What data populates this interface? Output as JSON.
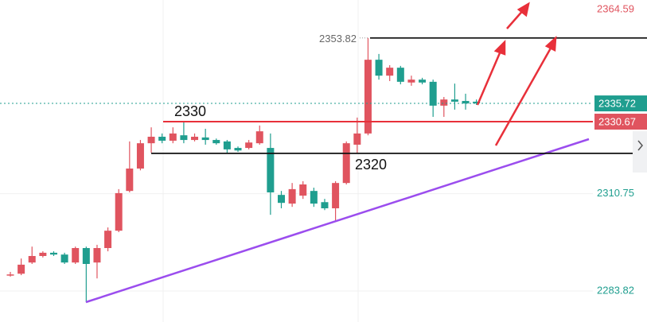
{
  "chart_data": {
    "type": "candlestick",
    "categories": [
      null,
      null,
      null,
      null,
      null,
      null,
      null,
      null,
      null,
      null,
      null,
      null,
      null,
      null,
      null,
      null,
      null,
      null,
      null,
      null,
      null,
      null,
      null,
      null,
      null,
      null,
      null,
      null,
      null,
      null,
      null,
      null,
      null,
      null,
      null,
      null,
      null,
      null,
      null,
      null,
      null,
      null,
      null,
      null
    ],
    "open": [
      2288.2,
      2288.6,
      2291.7,
      2293.5,
      2294.4,
      2293.9,
      2291.7,
      2295.7,
      2291.7,
      2295.7,
      2300.5,
      2311.5,
      2317.7,
      2324.7,
      2326.5,
      2325.4,
      2326.9,
      2325.6,
      2326.3,
      2325.6,
      2325.2,
      2323.4,
      2323.4,
      2324.7,
      2323.4,
      2310.4,
      2308.0,
      2310.2,
      2311.5,
      2308.4,
      2306.7,
      2313.7,
      2324.3,
      2327.4,
      2347.8,
      2343.4,
      2345.6,
      2341.5,
      2342.3,
      2341.7,
      2335.1,
      2336.8,
      2336.4,
      2336.2
    ],
    "high": [
      2289.1,
      2292.8,
      2296.1,
      2294.8,
      2294.8,
      2294.4,
      2296.1,
      2296.1,
      2296.6,
      2301.4,
      2312.0,
      2325.2,
      2325.6,
      2329.1,
      2327.4,
      2329.1,
      2330.9,
      2327.4,
      2328.7,
      2326.0,
      2325.6,
      2323.8,
      2325.6,
      2329.6,
      2327.4,
      2311.5,
      2313.7,
      2314.2,
      2312.4,
      2309.3,
      2314.2,
      2325.2,
      2331.8,
      2353.82,
      2349.4,
      2346.3,
      2346.1,
      2343.4,
      2342.8,
      2342.3,
      2337.5,
      2341.2,
      2338.4,
      2336.8
    ],
    "low": [
      2287.8,
      2288.2,
      2291.3,
      2293.1,
      2293.5,
      2291.3,
      2291.3,
      2280.7,
      2287.3,
      2294.8,
      2300.1,
      2311.1,
      2317.2,
      2322.1,
      2324.7,
      2324.7,
      2324.7,
      2325.2,
      2324.3,
      2324.3,
      2322.1,
      2322.3,
      2323.0,
      2324.3,
      2304.9,
      2306.7,
      2307.1,
      2309.3,
      2307.1,
      2306.2,
      2303.2,
      2313.3,
      2322.1,
      2326.9,
      2342.3,
      2341.9,
      2341.0,
      2340.6,
      2341.0,
      2332.0,
      2332.0,
      2334.0,
      2334.0,
      2335.3
    ],
    "close": [
      2288.4,
      2291.1,
      2293.5,
      2294.4,
      2293.9,
      2291.7,
      2295.7,
      2291.3,
      2295.7,
      2300.5,
      2310.9,
      2317.7,
      2324.7,
      2326.5,
      2325.4,
      2327.4,
      2325.6,
      2326.5,
      2325.6,
      2324.7,
      2323.0,
      2322.7,
      2324.9,
      2328.0,
      2311.1,
      2308.2,
      2312.0,
      2313.3,
      2308.0,
      2306.7,
      2313.7,
      2324.7,
      2327.4,
      2347.8,
      2343.4,
      2345.6,
      2341.7,
      2342.3,
      2341.5,
      2335.1,
      2336.8,
      2336.2,
      2335.7,
      2335.72
    ],
    "up_color": "#e0545f",
    "down_color": "#1f9e8f",
    "ylim": [
      2275.24,
      2364.33
    ],
    "yticks": [
      2364.59,
      2310.75,
      2283.82
    ],
    "current_price": 2335.72,
    "marked_level": 2330.67,
    "high_value": 2353.82,
    "support_level": 2321.9,
    "annotations": [
      "2330",
      "2320"
    ]
  }
}
